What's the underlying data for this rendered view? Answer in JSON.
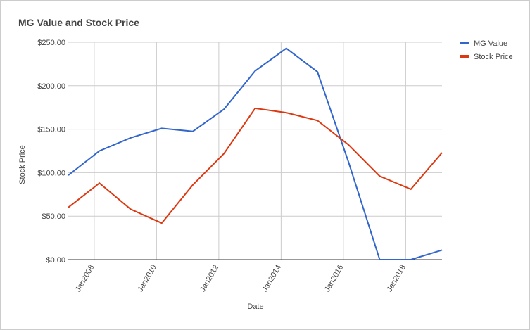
{
  "chart_data": {
    "type": "line",
    "title": "MG Value and Stock Price",
    "x_label": "Date",
    "y_label": "Stock Price",
    "x": [
      "2007-03",
      "2008-03",
      "2009-03",
      "2010-03",
      "2011-03",
      "2012-03",
      "2013-03",
      "2014-03",
      "2015-03",
      "2016-03",
      "2017-03",
      "2018-03",
      "2019-03"
    ],
    "xlim": [
      "2007-03",
      "2019-03"
    ],
    "xticks": [
      {
        "value": "2008-01",
        "label": "Jan2008"
      },
      {
        "value": "2010-01",
        "label": "Jan2010"
      },
      {
        "value": "2012-01",
        "label": "Jan2012"
      },
      {
        "value": "2014-01",
        "label": "Jan2014"
      },
      {
        "value": "2016-01",
        "label": "Jan2016"
      },
      {
        "value": "2018-01",
        "label": "Jan2018"
      }
    ],
    "ylim": [
      0,
      250
    ],
    "yticks": [
      {
        "value": 0,
        "label": "$0.00"
      },
      {
        "value": 50,
        "label": "$50.00"
      },
      {
        "value": 100,
        "label": "$100.00"
      },
      {
        "value": 150,
        "label": "$150.00"
      },
      {
        "value": 200,
        "label": "$200.00"
      },
      {
        "value": 250,
        "label": "$250.00"
      }
    ],
    "grid": true,
    "legend": "right",
    "series": [
      {
        "name": "MG Value",
        "color": "#3366cc",
        "values": [
          97,
          125,
          140,
          151,
          147.5,
          173,
          217,
          243,
          216,
          112,
          0,
          0,
          11
        ]
      },
      {
        "name": "Stock Price",
        "color": "#dc3912",
        "values": [
          60,
          88,
          58,
          42,
          86,
          122,
          174,
          169,
          160,
          132,
          96,
          81,
          123
        ]
      }
    ]
  }
}
